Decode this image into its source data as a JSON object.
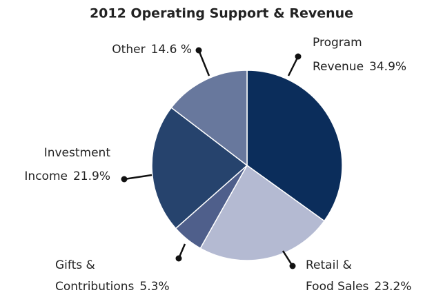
{
  "chart_data": {
    "type": "pie",
    "title": "2012 Operating Support & Revenue",
    "categories": [
      [
        "Program",
        "Revenue"
      ],
      [
        "Retail &",
        "Food Sales"
      ],
      [
        "Gifts &",
        "Contributions"
      ],
      [
        "Investment",
        "Income"
      ],
      [
        "Other"
      ]
    ],
    "values": [
      34.9,
      23.2,
      5.3,
      21.9,
      14.6
    ],
    "value_labels": [
      "34.9%",
      "23.2%",
      "5.3%",
      "21.9%",
      "14.6 %"
    ],
    "colors": [
      "#0b2d5b",
      "#b4bad2",
      "#4f5f8b",
      "#26436d",
      "#68789d"
    ],
    "title_color": "#e0622a"
  }
}
